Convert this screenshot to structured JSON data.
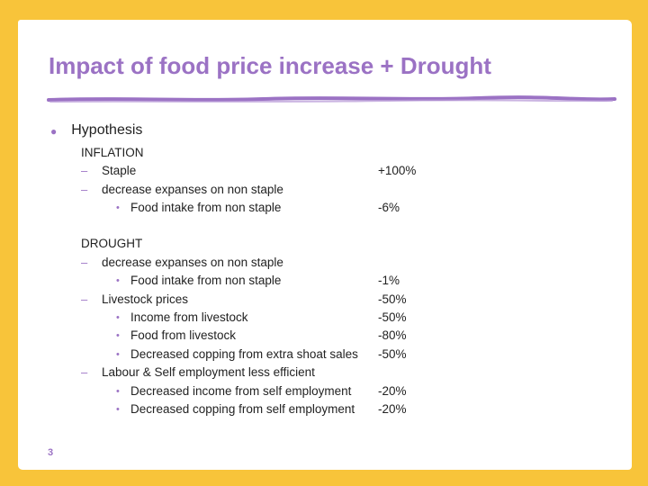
{
  "title": "Impact of food price increase + Drought",
  "hypothesis_label": "Hypothesis",
  "inflation": {
    "heading": "INFLATION",
    "rows": [
      {
        "level": 1,
        "label": "Staple",
        "value": "+100%"
      },
      {
        "level": 1,
        "label": "decrease expanses on non staple",
        "value": ""
      },
      {
        "level": 2,
        "label": "Food intake from non staple",
        "value": "-6%"
      }
    ]
  },
  "drought": {
    "heading": "DROUGHT",
    "rows": [
      {
        "level": 1,
        "label": "decrease expanses on non staple",
        "value": ""
      },
      {
        "level": 2,
        "label": "Food intake from non staple",
        "value": "-1%"
      },
      {
        "level": 1,
        "label": "Livestock prices",
        "value": "-50%"
      },
      {
        "level": 2,
        "label": "Income from livestock",
        "value": "-50%"
      },
      {
        "level": 2,
        "label": "Food from livestock",
        "value": "-80%"
      },
      {
        "level": 2,
        "label": "Decreased copping from extra shoat sales",
        "value": "-50%"
      },
      {
        "level": 1,
        "label": "Labour & Self employment less efficient",
        "value": ""
      },
      {
        "level": 2,
        "label": "Decreased income from self employment",
        "value": "-20%"
      },
      {
        "level": 2,
        "label": "Decreased copping from self employment",
        "value": "-20%"
      }
    ]
  },
  "page_number": "3",
  "colors": {
    "accent": "#9b72c4",
    "frame": "#f8c43a"
  }
}
